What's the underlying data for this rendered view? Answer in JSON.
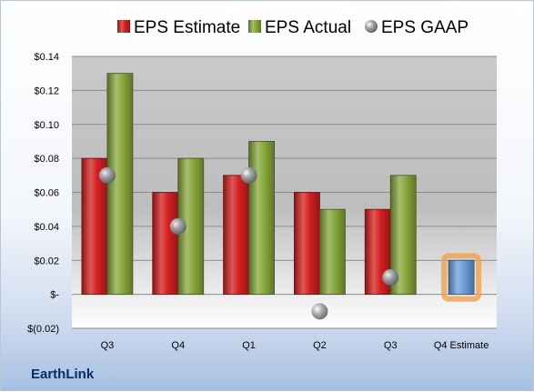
{
  "company": "EarthLink",
  "legend": [
    {
      "label": "EPS Estimate",
      "color": "#d42020",
      "marker": "square"
    },
    {
      "label": "EPS Actual",
      "color": "#88a83c",
      "marker": "square"
    },
    {
      "label": "EPS GAAP",
      "color": "#8a8f96",
      "marker": "circle"
    }
  ],
  "chart_data": {
    "type": "bar",
    "categories": [
      "Q3",
      "Q4",
      "Q1",
      "Q2",
      "Q3",
      "Q4 Estimate"
    ],
    "series": [
      {
        "name": "EPS Estimate",
        "type": "bar",
        "color": "#d42020",
        "values": [
          0.08,
          0.06,
          0.07,
          0.06,
          0.05,
          null
        ]
      },
      {
        "name": "EPS Actual",
        "type": "bar",
        "color": "#88a83c",
        "values": [
          0.13,
          0.08,
          0.09,
          0.05,
          0.07,
          null
        ]
      },
      {
        "name": "EPS GAAP",
        "type": "scatter",
        "color": "#8a8f96",
        "values": [
          0.07,
          0.04,
          0.07,
          -0.01,
          0.01,
          null
        ]
      },
      {
        "name": "",
        "type": "bar",
        "color": "#6f9fdc",
        "highlight": "#f0a050",
        "values": [
          null,
          null,
          null,
          null,
          null,
          0.02
        ]
      }
    ],
    "y_ticks": [
      {
        "value": 0.14,
        "label": "$0.14"
      },
      {
        "value": 0.12,
        "label": "$0.12"
      },
      {
        "value": 0.1,
        "label": "$0.10"
      },
      {
        "value": 0.08,
        "label": "$0.08"
      },
      {
        "value": 0.06,
        "label": "$0.06"
      },
      {
        "value": 0.04,
        "label": "$0.04"
      },
      {
        "value": 0.02,
        "label": "$0.02"
      },
      {
        "value": 0.0,
        "label": "$-"
      },
      {
        "value": -0.02,
        "label": "$(0.02)"
      }
    ],
    "ylim": [
      -0.02,
      0.14
    ],
    "grid": true,
    "legend_position": "top",
    "title": "",
    "xlabel": "",
    "ylabel": ""
  }
}
